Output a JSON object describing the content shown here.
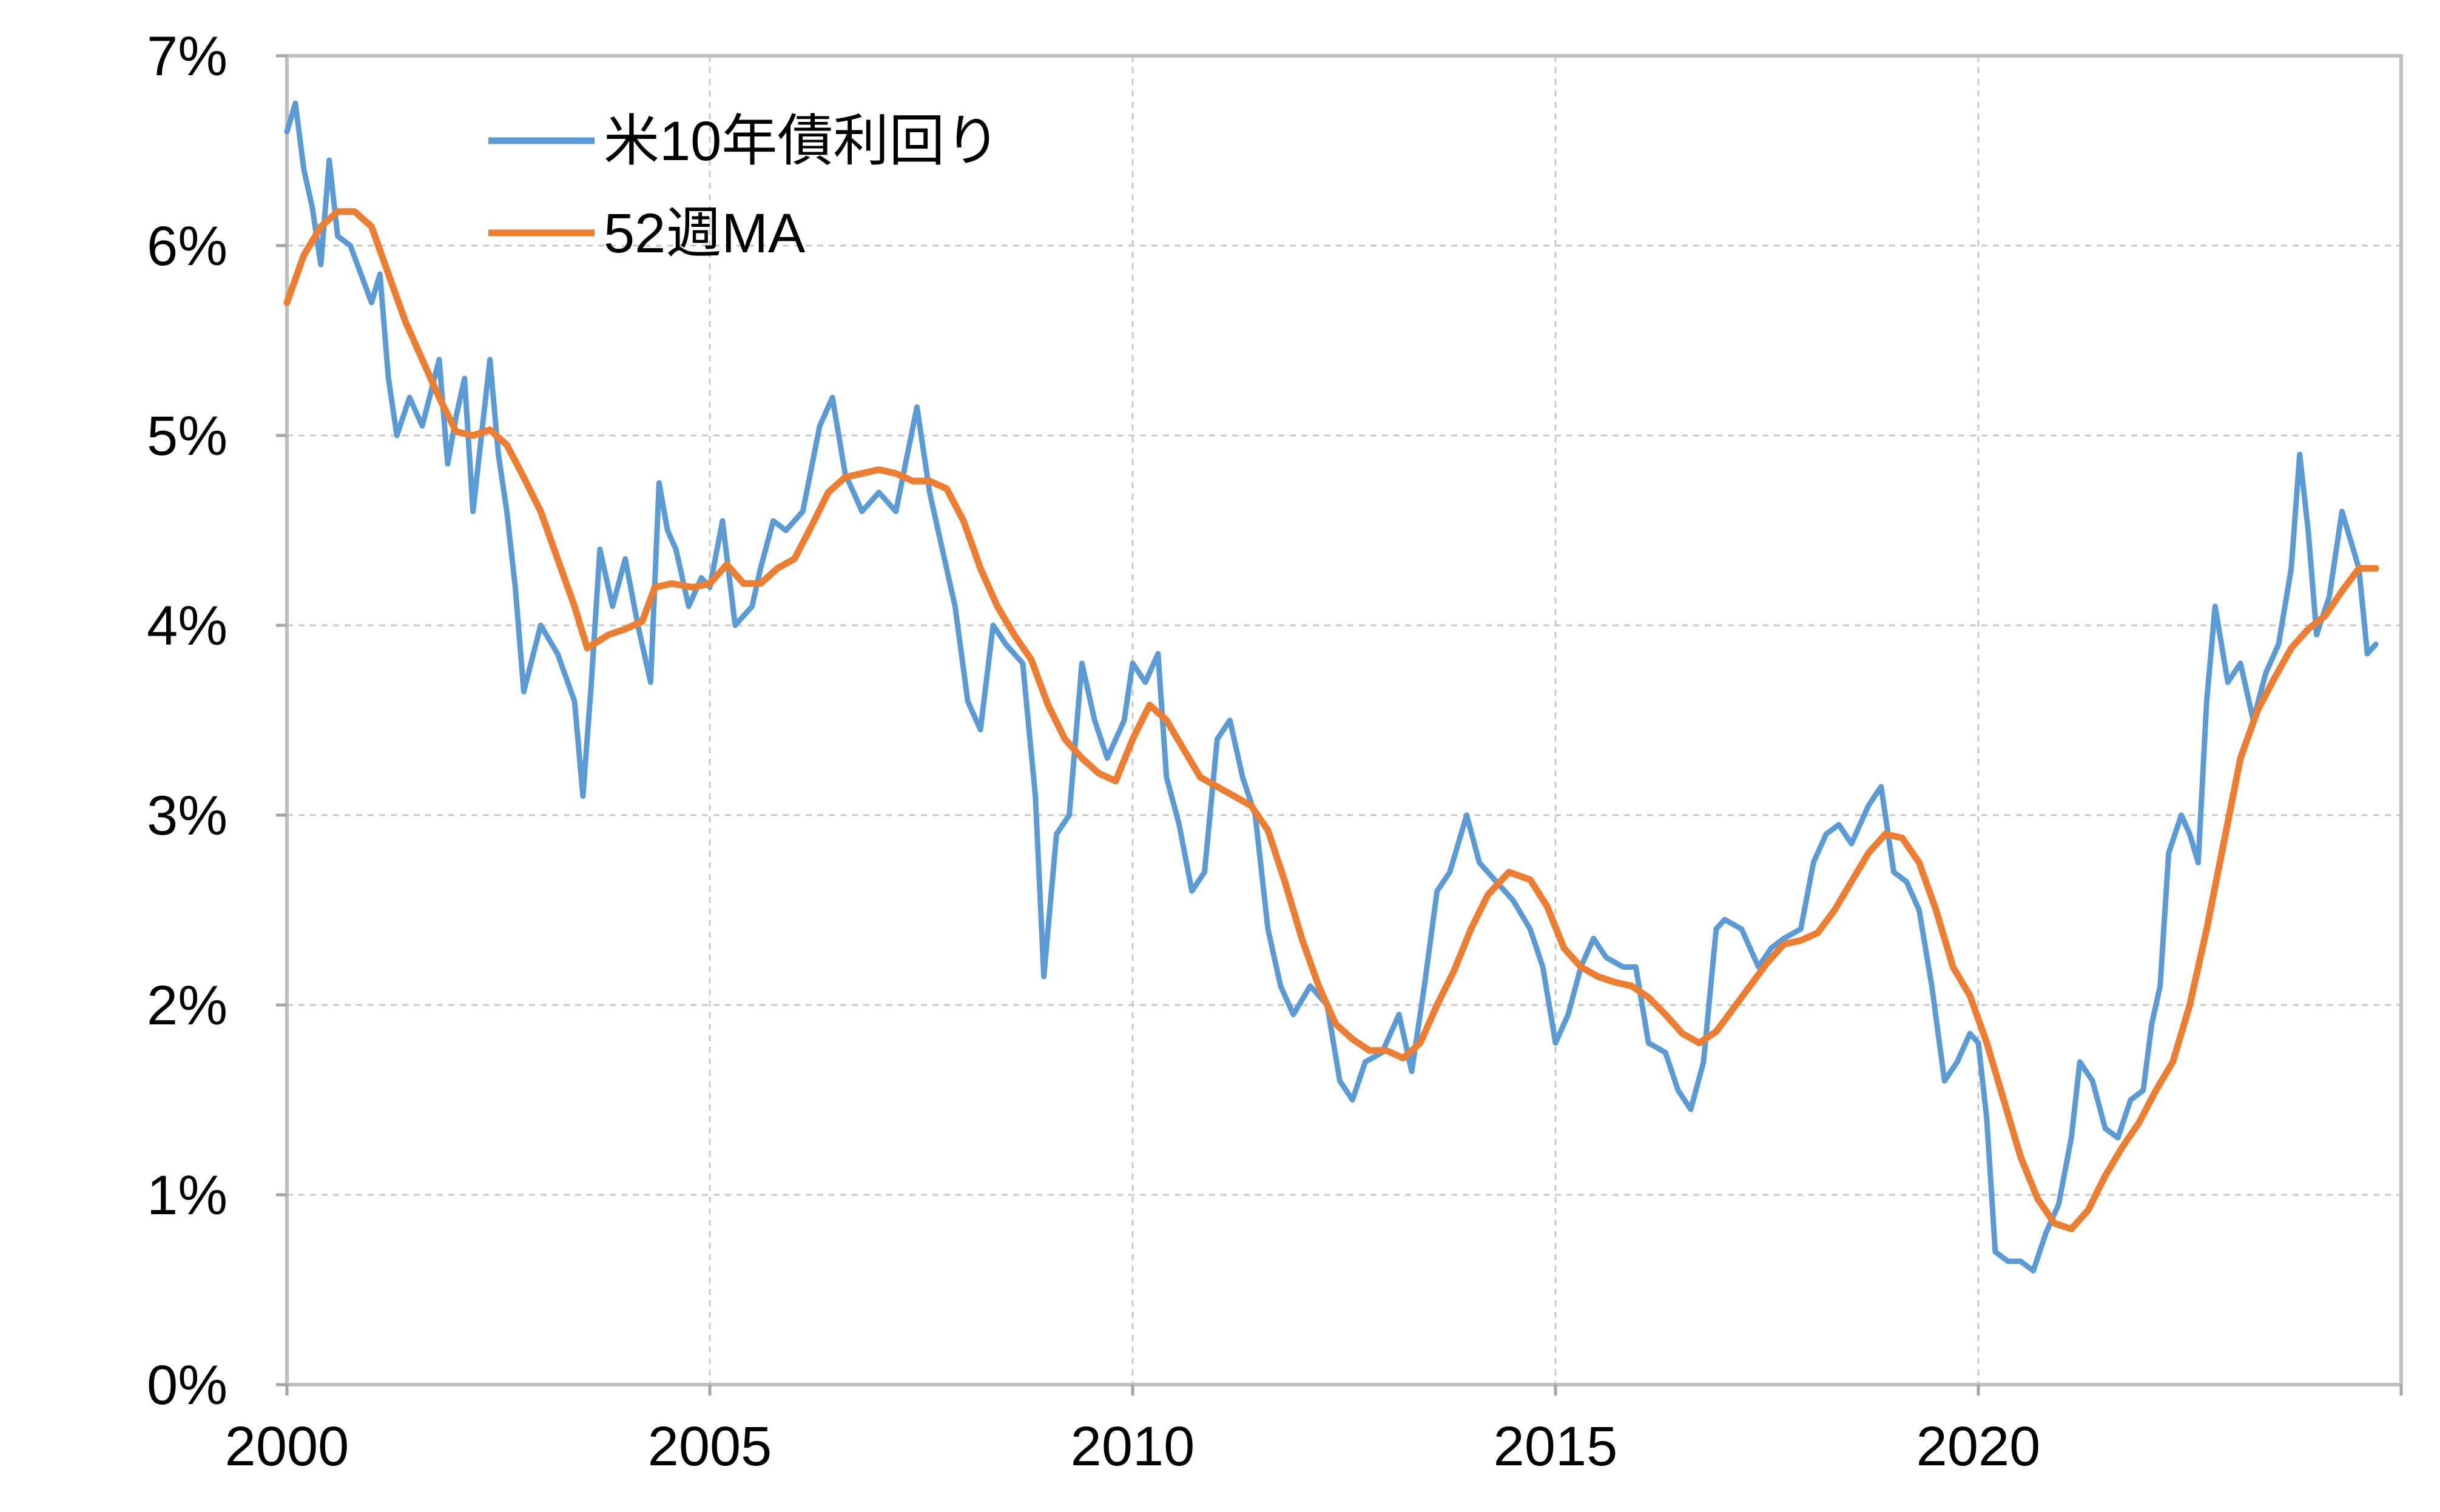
{
  "chart_data": {
    "type": "line",
    "title": "",
    "xlabel": "",
    "ylabel": "",
    "xlim": [
      2000,
      2025
    ],
    "ylim": [
      0,
      7
    ],
    "x_ticks": [
      2000,
      2005,
      2010,
      2015,
      2020
    ],
    "x_tick_labels": [
      "2000",
      "2005",
      "2010",
      "2015",
      "2020"
    ],
    "y_ticks": [
      0,
      1,
      2,
      3,
      4,
      5,
      6,
      7
    ],
    "y_tick_labels": [
      "0%",
      "1%",
      "2%",
      "3%",
      "4%",
      "5%",
      "6%",
      "7%"
    ],
    "grid": true,
    "legend_position": "top-left",
    "series": [
      {
        "name": "米10年債利回り",
        "color": "#5b9bd5",
        "points": [
          [
            2000.0,
            6.6
          ],
          [
            2000.1,
            6.75
          ],
          [
            2000.2,
            6.4
          ],
          [
            2000.3,
            6.2
          ],
          [
            2000.4,
            5.9
          ],
          [
            2000.5,
            6.45
          ],
          [
            2000.6,
            6.05
          ],
          [
            2000.75,
            6.0
          ],
          [
            2001.0,
            5.7
          ],
          [
            2001.1,
            5.85
          ],
          [
            2001.2,
            5.3
          ],
          [
            2001.3,
            5.0
          ],
          [
            2001.45,
            5.2
          ],
          [
            2001.6,
            5.05
          ],
          [
            2001.8,
            5.4
          ],
          [
            2001.9,
            4.85
          ],
          [
            2002.0,
            5.1
          ],
          [
            2002.1,
            5.3
          ],
          [
            2002.2,
            4.6
          ],
          [
            2002.3,
            5.0
          ],
          [
            2002.4,
            5.4
          ],
          [
            2002.5,
            4.9
          ],
          [
            2002.6,
            4.6
          ],
          [
            2002.7,
            4.2
          ],
          [
            2002.8,
            3.65
          ],
          [
            2003.0,
            4.0
          ],
          [
            2003.2,
            3.85
          ],
          [
            2003.4,
            3.6
          ],
          [
            2003.5,
            3.1
          ],
          [
            2003.6,
            3.7
          ],
          [
            2003.7,
            4.4
          ],
          [
            2003.85,
            4.1
          ],
          [
            2004.0,
            4.35
          ],
          [
            2004.15,
            4.0
          ],
          [
            2004.3,
            3.7
          ],
          [
            2004.4,
            4.75
          ],
          [
            2004.5,
            4.5
          ],
          [
            2004.6,
            4.4
          ],
          [
            2004.75,
            4.1
          ],
          [
            2004.9,
            4.25
          ],
          [
            2005.0,
            4.2
          ],
          [
            2005.15,
            4.55
          ],
          [
            2005.3,
            4.0
          ],
          [
            2005.5,
            4.1
          ],
          [
            2005.6,
            4.3
          ],
          [
            2005.75,
            4.55
          ],
          [
            2005.9,
            4.5
          ],
          [
            2006.1,
            4.6
          ],
          [
            2006.3,
            5.05
          ],
          [
            2006.45,
            5.2
          ],
          [
            2006.6,
            4.8
          ],
          [
            2006.8,
            4.6
          ],
          [
            2007.0,
            4.7
          ],
          [
            2007.2,
            4.6
          ],
          [
            2007.45,
            5.15
          ],
          [
            2007.6,
            4.7
          ],
          [
            2007.75,
            4.4
          ],
          [
            2007.9,
            4.1
          ],
          [
            2008.05,
            3.6
          ],
          [
            2008.2,
            3.45
          ],
          [
            2008.35,
            4.0
          ],
          [
            2008.5,
            3.9
          ],
          [
            2008.7,
            3.8
          ],
          [
            2008.85,
            3.1
          ],
          [
            2008.95,
            2.15
          ],
          [
            2009.1,
            2.9
          ],
          [
            2009.25,
            3.0
          ],
          [
            2009.4,
            3.8
          ],
          [
            2009.55,
            3.5
          ],
          [
            2009.7,
            3.3
          ],
          [
            2009.9,
            3.5
          ],
          [
            2010.0,
            3.8
          ],
          [
            2010.15,
            3.7
          ],
          [
            2010.3,
            3.85
          ],
          [
            2010.4,
            3.2
          ],
          [
            2010.55,
            2.95
          ],
          [
            2010.7,
            2.6
          ],
          [
            2010.85,
            2.7
          ],
          [
            2011.0,
            3.4
          ],
          [
            2011.15,
            3.5
          ],
          [
            2011.3,
            3.2
          ],
          [
            2011.45,
            3.0
          ],
          [
            2011.6,
            2.4
          ],
          [
            2011.75,
            2.1
          ],
          [
            2011.9,
            1.95
          ],
          [
            2012.1,
            2.1
          ],
          [
            2012.3,
            2.0
          ],
          [
            2012.45,
            1.6
          ],
          [
            2012.6,
            1.5
          ],
          [
            2012.75,
            1.7
          ],
          [
            2012.95,
            1.75
          ],
          [
            2013.15,
            1.95
          ],
          [
            2013.3,
            1.65
          ],
          [
            2013.45,
            2.1
          ],
          [
            2013.6,
            2.6
          ],
          [
            2013.75,
            2.7
          ],
          [
            2013.95,
            3.0
          ],
          [
            2014.1,
            2.75
          ],
          [
            2014.3,
            2.65
          ],
          [
            2014.5,
            2.55
          ],
          [
            2014.7,
            2.4
          ],
          [
            2014.85,
            2.2
          ],
          [
            2015.0,
            1.8
          ],
          [
            2015.15,
            1.95
          ],
          [
            2015.3,
            2.2
          ],
          [
            2015.45,
            2.35
          ],
          [
            2015.6,
            2.25
          ],
          [
            2015.8,
            2.2
          ],
          [
            2015.95,
            2.2
          ],
          [
            2016.1,
            1.8
          ],
          [
            2016.3,
            1.75
          ],
          [
            2016.45,
            1.55
          ],
          [
            2016.6,
            1.45
          ],
          [
            2016.75,
            1.7
          ],
          [
            2016.9,
            2.4
          ],
          [
            2017.0,
            2.45
          ],
          [
            2017.2,
            2.4
          ],
          [
            2017.4,
            2.2
          ],
          [
            2017.55,
            2.3
          ],
          [
            2017.7,
            2.35
          ],
          [
            2017.9,
            2.4
          ],
          [
            2018.05,
            2.75
          ],
          [
            2018.2,
            2.9
          ],
          [
            2018.35,
            2.95
          ],
          [
            2018.5,
            2.85
          ],
          [
            2018.7,
            3.05
          ],
          [
            2018.85,
            3.15
          ],
          [
            2019.0,
            2.7
          ],
          [
            2019.15,
            2.65
          ],
          [
            2019.3,
            2.5
          ],
          [
            2019.45,
            2.1
          ],
          [
            2019.6,
            1.6
          ],
          [
            2019.75,
            1.7
          ],
          [
            2019.9,
            1.85
          ],
          [
            2020.0,
            1.8
          ],
          [
            2020.1,
            1.4
          ],
          [
            2020.2,
            0.7
          ],
          [
            2020.35,
            0.65
          ],
          [
            2020.5,
            0.65
          ],
          [
            2020.65,
            0.6
          ],
          [
            2020.8,
            0.8
          ],
          [
            2020.95,
            0.95
          ],
          [
            2021.1,
            1.3
          ],
          [
            2021.2,
            1.7
          ],
          [
            2021.35,
            1.6
          ],
          [
            2021.5,
            1.35
          ],
          [
            2021.65,
            1.3
          ],
          [
            2021.8,
            1.5
          ],
          [
            2021.95,
            1.55
          ],
          [
            2022.05,
            1.9
          ],
          [
            2022.15,
            2.1
          ],
          [
            2022.25,
            2.8
          ],
          [
            2022.4,
            3.0
          ],
          [
            2022.5,
            2.9
          ],
          [
            2022.6,
            2.75
          ],
          [
            2022.7,
            3.6
          ],
          [
            2022.8,
            4.1
          ],
          [
            2022.95,
            3.7
          ],
          [
            2023.1,
            3.8
          ],
          [
            2023.25,
            3.5
          ],
          [
            2023.4,
            3.75
          ],
          [
            2023.55,
            3.9
          ],
          [
            2023.7,
            4.3
          ],
          [
            2023.8,
            4.9
          ],
          [
            2023.9,
            4.5
          ],
          [
            2024.0,
            3.95
          ],
          [
            2024.15,
            4.15
          ],
          [
            2024.3,
            4.6
          ],
          [
            2024.4,
            4.45
          ],
          [
            2024.5,
            4.3
          ],
          [
            2024.6,
            3.85
          ],
          [
            2024.7,
            3.9
          ]
        ]
      },
      {
        "name": "52週MA",
        "color": "#ed7d31",
        "points": [
          [
            2000.0,
            5.7
          ],
          [
            2000.2,
            5.95
          ],
          [
            2000.4,
            6.1
          ],
          [
            2000.6,
            6.18
          ],
          [
            2000.8,
            6.18
          ],
          [
            2001.0,
            6.1
          ],
          [
            2001.2,
            5.85
          ],
          [
            2001.4,
            5.6
          ],
          [
            2001.6,
            5.4
          ],
          [
            2001.8,
            5.2
          ],
          [
            2002.0,
            5.02
          ],
          [
            2002.2,
            5.0
          ],
          [
            2002.4,
            5.03
          ],
          [
            2002.6,
            4.95
          ],
          [
            2002.8,
            4.78
          ],
          [
            2003.0,
            4.6
          ],
          [
            2003.2,
            4.35
          ],
          [
            2003.4,
            4.1
          ],
          [
            2003.55,
            3.88
          ],
          [
            2003.8,
            3.95
          ],
          [
            2004.0,
            3.98
          ],
          [
            2004.2,
            4.02
          ],
          [
            2004.35,
            4.2
          ],
          [
            2004.55,
            4.22
          ],
          [
            2004.8,
            4.2
          ],
          [
            2005.0,
            4.22
          ],
          [
            2005.2,
            4.32
          ],
          [
            2005.4,
            4.22
          ],
          [
            2005.6,
            4.22
          ],
          [
            2005.8,
            4.3
          ],
          [
            2006.0,
            4.35
          ],
          [
            2006.2,
            4.52
          ],
          [
            2006.4,
            4.7
          ],
          [
            2006.6,
            4.78
          ],
          [
            2006.8,
            4.8
          ],
          [
            2007.0,
            4.82
          ],
          [
            2007.2,
            4.8
          ],
          [
            2007.4,
            4.76
          ],
          [
            2007.6,
            4.76
          ],
          [
            2007.8,
            4.72
          ],
          [
            2008.0,
            4.55
          ],
          [
            2008.2,
            4.3
          ],
          [
            2008.4,
            4.1
          ],
          [
            2008.6,
            3.95
          ],
          [
            2008.8,
            3.82
          ],
          [
            2009.0,
            3.58
          ],
          [
            2009.2,
            3.4
          ],
          [
            2009.4,
            3.3
          ],
          [
            2009.6,
            3.22
          ],
          [
            2009.8,
            3.18
          ],
          [
            2010.0,
            3.4
          ],
          [
            2010.2,
            3.58
          ],
          [
            2010.4,
            3.5
          ],
          [
            2010.6,
            3.35
          ],
          [
            2010.8,
            3.2
          ],
          [
            2011.0,
            3.15
          ],
          [
            2011.2,
            3.1
          ],
          [
            2011.4,
            3.05
          ],
          [
            2011.6,
            2.92
          ],
          [
            2011.8,
            2.65
          ],
          [
            2012.0,
            2.35
          ],
          [
            2012.2,
            2.1
          ],
          [
            2012.4,
            1.9
          ],
          [
            2012.6,
            1.82
          ],
          [
            2012.8,
            1.76
          ],
          [
            2013.0,
            1.76
          ],
          [
            2013.2,
            1.72
          ],
          [
            2013.4,
            1.8
          ],
          [
            2013.6,
            2.0
          ],
          [
            2013.8,
            2.18
          ],
          [
            2014.0,
            2.4
          ],
          [
            2014.2,
            2.58
          ],
          [
            2014.45,
            2.7
          ],
          [
            2014.7,
            2.66
          ],
          [
            2014.9,
            2.52
          ],
          [
            2015.1,
            2.3
          ],
          [
            2015.3,
            2.2
          ],
          [
            2015.5,
            2.15
          ],
          [
            2015.7,
            2.12
          ],
          [
            2015.9,
            2.1
          ],
          [
            2016.1,
            2.04
          ],
          [
            2016.3,
            1.95
          ],
          [
            2016.5,
            1.85
          ],
          [
            2016.7,
            1.8
          ],
          [
            2016.9,
            1.86
          ],
          [
            2017.1,
            1.98
          ],
          [
            2017.3,
            2.1
          ],
          [
            2017.5,
            2.22
          ],
          [
            2017.7,
            2.32
          ],
          [
            2017.9,
            2.34
          ],
          [
            2018.1,
            2.38
          ],
          [
            2018.3,
            2.5
          ],
          [
            2018.5,
            2.65
          ],
          [
            2018.7,
            2.8
          ],
          [
            2018.9,
            2.9
          ],
          [
            2019.1,
            2.88
          ],
          [
            2019.3,
            2.75
          ],
          [
            2019.5,
            2.5
          ],
          [
            2019.7,
            2.2
          ],
          [
            2019.9,
            2.05
          ],
          [
            2020.1,
            1.8
          ],
          [
            2020.3,
            1.5
          ],
          [
            2020.5,
            1.2
          ],
          [
            2020.7,
            0.98
          ],
          [
            2020.9,
            0.85
          ],
          [
            2021.1,
            0.82
          ],
          [
            2021.3,
            0.92
          ],
          [
            2021.5,
            1.1
          ],
          [
            2021.7,
            1.25
          ],
          [
            2021.9,
            1.38
          ],
          [
            2022.1,
            1.55
          ],
          [
            2022.3,
            1.7
          ],
          [
            2022.5,
            2.0
          ],
          [
            2022.7,
            2.4
          ],
          [
            2022.9,
            2.85
          ],
          [
            2023.1,
            3.3
          ],
          [
            2023.3,
            3.55
          ],
          [
            2023.5,
            3.72
          ],
          [
            2023.7,
            3.88
          ],
          [
            2023.9,
            3.98
          ],
          [
            2024.1,
            4.05
          ],
          [
            2024.3,
            4.18
          ],
          [
            2024.5,
            4.3
          ],
          [
            2024.7,
            4.3
          ]
        ]
      }
    ]
  }
}
